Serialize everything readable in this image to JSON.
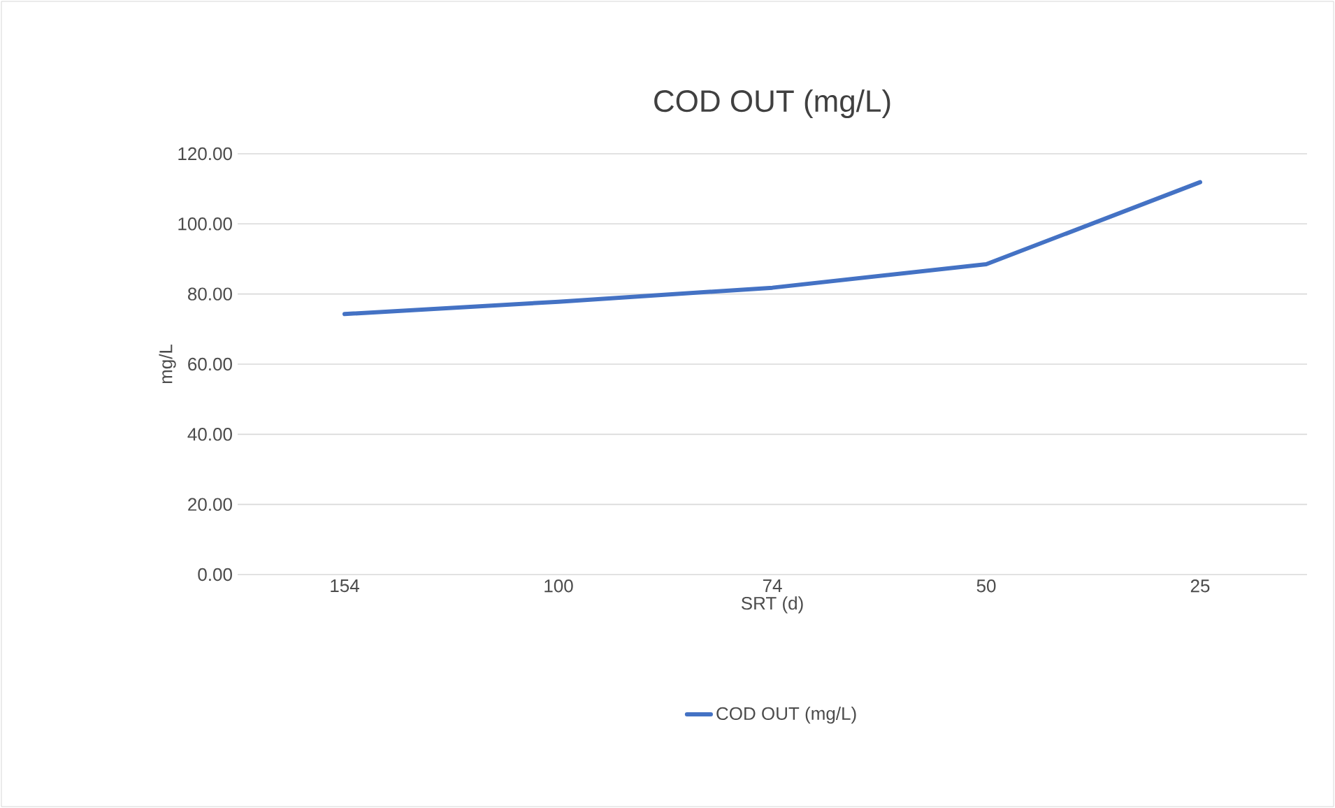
{
  "chart_data": {
    "type": "line",
    "title": "COD OUT (mg/L)",
    "xlabel": "SRT (d)",
    "ylabel": "mg/L",
    "categories": [
      "154",
      "100",
      "74",
      "50",
      "25"
    ],
    "series": [
      {
        "name": "COD OUT (mg/L)",
        "color": "#4472c4",
        "values": [
          74.3,
          77.8,
          81.8,
          88.5,
          111.9
        ]
      }
    ],
    "ylim": [
      0,
      120
    ],
    "yticks": [
      {
        "value": 0,
        "label": "0.00"
      },
      {
        "value": 20,
        "label": "20.00"
      },
      {
        "value": 40,
        "label": "40.00"
      },
      {
        "value": 60,
        "label": "60.00"
      },
      {
        "value": 80,
        "label": "80.00"
      },
      {
        "value": 100,
        "label": "100.00"
      },
      {
        "value": 120,
        "label": "120.00"
      }
    ],
    "grid": "y",
    "legend": "bottom",
    "marker": "none",
    "line_style": "solid"
  }
}
